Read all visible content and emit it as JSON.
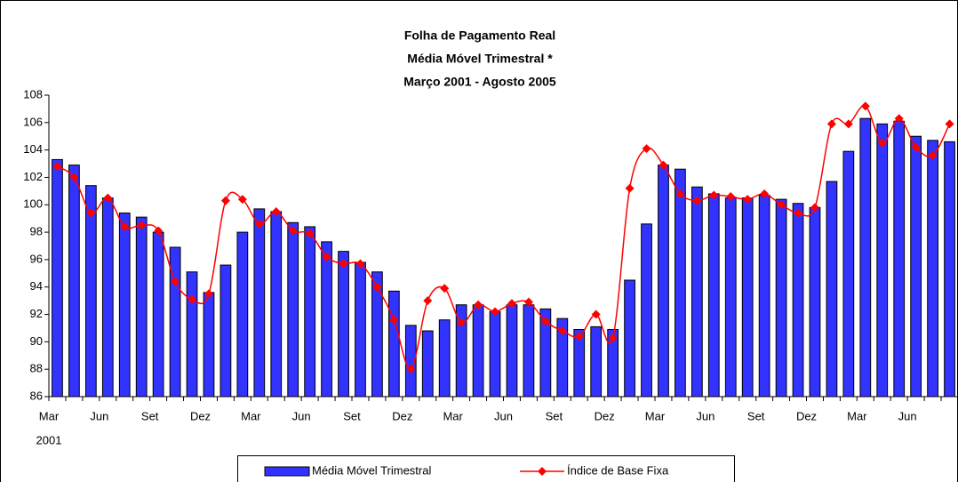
{
  "chart_data": {
    "type": "bar_line",
    "title": "Folha de Pagamento Real",
    "subtitle": "Média Móvel Trimestral *",
    "period": "Março 2001 - Agosto 2005",
    "categories": [
      "Mar",
      null,
      null,
      "Jun",
      null,
      null,
      "Set",
      null,
      null,
      "Dez",
      null,
      null,
      "Mar",
      null,
      null,
      "Jun",
      null,
      null,
      "Set",
      null,
      null,
      "Dez",
      null,
      null,
      "Mar",
      null,
      null,
      "Jun",
      null,
      null,
      "Set",
      null,
      null,
      "Dez",
      null,
      null,
      "Mar",
      null,
      null,
      "Jun",
      null,
      null,
      "Set",
      null,
      null,
      "Dez",
      null,
      null,
      "Mar",
      null,
      null,
      "Jun",
      null,
      null
    ],
    "first_year": "2001",
    "series": [
      {
        "name": "Média Móvel Trimestral",
        "kind": "bar",
        "color": "#3333ff",
        "values": [
          103.3,
          102.9,
          101.4,
          100.5,
          99.4,
          99.1,
          98.0,
          96.9,
          95.1,
          93.6,
          95.6,
          98.0,
          99.7,
          99.5,
          98.7,
          98.4,
          97.3,
          96.6,
          95.8,
          95.1,
          93.7,
          91.2,
          90.8,
          91.6,
          92.7,
          92.7,
          92.2,
          92.7,
          92.7,
          92.4,
          91.7,
          90.9,
          91.1,
          90.9,
          94.5,
          98.6,
          102.9,
          102.6,
          101.3,
          100.8,
          100.5,
          100.5,
          100.7,
          100.4,
          100.1,
          99.8,
          101.7,
          103.9,
          106.3,
          105.9,
          106.1,
          105.0,
          104.7,
          104.6
        ]
      },
      {
        "name": "Índice de Base Fixa",
        "kind": "line",
        "color": "#ff0000",
        "values": [
          102.8,
          102.0,
          99.4,
          100.5,
          98.4,
          98.5,
          98.1,
          94.4,
          93.1,
          93.5,
          100.3,
          100.4,
          98.6,
          99.5,
          98.1,
          97.9,
          96.2,
          95.7,
          95.7,
          94.0,
          91.6,
          88.0,
          93.0,
          93.9,
          91.4,
          92.7,
          92.2,
          92.8,
          92.9,
          91.5,
          90.8,
          90.4,
          92.0,
          90.3,
          101.2,
          104.1,
          102.9,
          100.8,
          100.3,
          100.7,
          100.6,
          100.4,
          100.8,
          100.0,
          99.4,
          99.8,
          105.9,
          105.9,
          107.2,
          104.5,
          106.3,
          104.2,
          103.6,
          105.9
        ]
      }
    ],
    "ylim": [
      86,
      108
    ],
    "yticks": [
      86,
      88,
      90,
      92,
      94,
      96,
      98,
      100,
      102,
      104,
      106,
      108
    ],
    "grid": false
  }
}
